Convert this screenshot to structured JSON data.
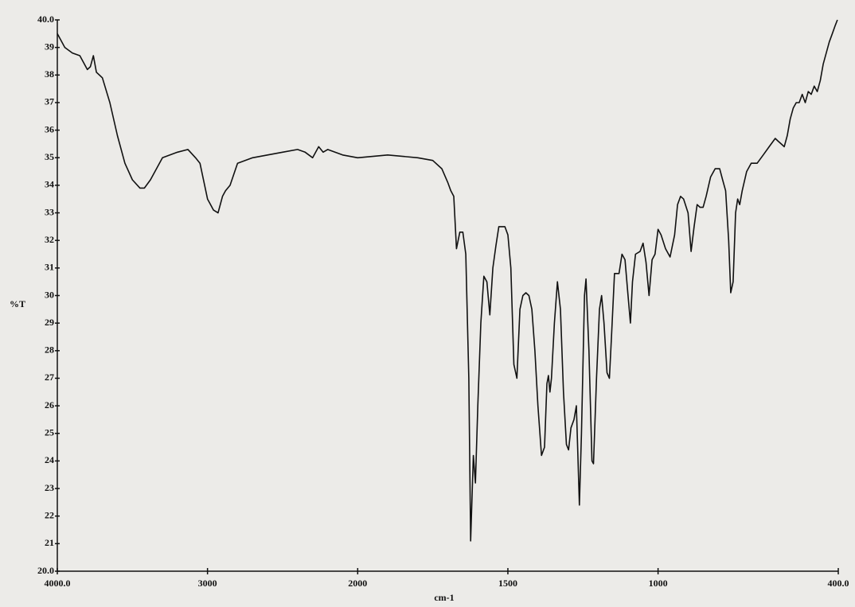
{
  "chart_data": {
    "type": "line",
    "x_label": "cm-1",
    "y_label": "%T",
    "color": "#111111",
    "xlim": [
      4000,
      400
    ],
    "ylim": [
      20,
      40
    ],
    "xticks": [
      {
        "value": 4000,
        "label": "4000.0"
      },
      3000,
      2000,
      1500,
      1000,
      {
        "value": 400,
        "label": "400.0"
      }
    ],
    "yticks": [
      {
        "value": 20,
        "label": "20.0"
      },
      21,
      22,
      23,
      24,
      25,
      26,
      27,
      28,
      29,
      30,
      31,
      32,
      33,
      34,
      35,
      36,
      37,
      38,
      39,
      {
        "value": 40,
        "label": "40.0"
      }
    ],
    "x": [
      4000,
      3950,
      3900,
      3850,
      3800,
      3780,
      3760,
      3740,
      3700,
      3650,
      3600,
      3550,
      3500,
      3450,
      3420,
      3380,
      3300,
      3200,
      3130,
      3080,
      3050,
      3000,
      2960,
      2930,
      2900,
      2880,
      2850,
      2800,
      2700,
      2600,
      2500,
      2400,
      2350,
      2300,
      2260,
      2230,
      2200,
      2100,
      2000,
      1900,
      1800,
      1750,
      1720,
      1700,
      1690,
      1680,
      1671,
      1660,
      1650,
      1640,
      1630,
      1624,
      1615,
      1608,
      1600,
      1590,
      1580,
      1570,
      1560,
      1550,
      1540,
      1530,
      1510,
      1500,
      1490,
      1480,
      1470,
      1460,
      1450,
      1440,
      1430,
      1420,
      1410,
      1400,
      1388,
      1378,
      1370,
      1365,
      1360,
      1355,
      1345,
      1335,
      1325,
      1315,
      1305,
      1298,
      1290,
      1280,
      1272,
      1262,
      1255,
      1245,
      1240,
      1230,
      1220,
      1215,
      1205,
      1195,
      1188,
      1180,
      1170,
      1162,
      1155,
      1145,
      1130,
      1120,
      1110,
      1100,
      1092,
      1085,
      1075,
      1060,
      1050,
      1040,
      1030,
      1020,
      1010,
      1000,
      990,
      975,
      960,
      945,
      935,
      925,
      915,
      900,
      890,
      880,
      870,
      860,
      850,
      840,
      825,
      810,
      795,
      785,
      775,
      765,
      758,
      750,
      742,
      735,
      728,
      720,
      705,
      690,
      670,
      650,
      630,
      610,
      600,
      590,
      580,
      570,
      560,
      550,
      540,
      530,
      520,
      510,
      500,
      490,
      480,
      470,
      460,
      450,
      440,
      430,
      420,
      410,
      403
    ],
    "values": [
      39.5,
      39.0,
      38.8,
      38.7,
      38.2,
      38.3,
      38.7,
      38.1,
      37.9,
      37.0,
      35.8,
      34.8,
      34.2,
      33.9,
      33.9,
      34.2,
      35.0,
      35.2,
      35.3,
      35.0,
      34.8,
      33.5,
      33.1,
      33.0,
      33.6,
      33.8,
      34.0,
      34.8,
      35.0,
      35.1,
      35.2,
      35.3,
      35.2,
      35.0,
      35.4,
      35.2,
      35.3,
      35.1,
      35.0,
      35.1,
      35.0,
      34.9,
      34.6,
      34.1,
      33.8,
      33.6,
      31.7,
      32.3,
      32.3,
      31.5,
      27.0,
      21.1,
      24.2,
      23.2,
      26.0,
      29.0,
      30.7,
      30.5,
      29.3,
      31.0,
      31.8,
      32.5,
      32.5,
      32.2,
      31.0,
      27.5,
      27.0,
      29.5,
      30.0,
      30.1,
      30.0,
      29.5,
      28.0,
      26.0,
      24.2,
      24.5,
      26.8,
      27.1,
      26.5,
      27.0,
      29.0,
      30.5,
      29.5,
      26.5,
      24.6,
      24.4,
      25.2,
      25.5,
      26.0,
      22.4,
      25.0,
      30.0,
      30.6,
      28.0,
      24.0,
      23.9,
      27.0,
      29.5,
      30.0,
      29.0,
      27.2,
      27.0,
      28.5,
      30.8,
      30.8,
      31.5,
      31.3,
      30.0,
      29.0,
      30.5,
      31.5,
      31.6,
      31.9,
      31.2,
      30.0,
      31.3,
      31.5,
      32.4,
      32.2,
      31.7,
      31.4,
      32.2,
      33.3,
      33.6,
      33.5,
      33.0,
      31.6,
      32.5,
      33.3,
      33.2,
      33.2,
      33.6,
      34.3,
      34.6,
      34.6,
      34.2,
      33.8,
      32.0,
      30.1,
      30.5,
      33.0,
      33.5,
      33.3,
      33.8,
      34.5,
      34.8,
      34.8,
      35.1,
      35.4,
      35.7,
      35.6,
      35.5,
      35.4,
      35.8,
      36.4,
      36.8,
      37.0,
      37.0,
      37.3,
      37.0,
      37.4,
      37.3,
      37.6,
      37.4,
      37.8,
      38.4,
      38.8,
      39.2,
      39.5,
      39.8,
      40.0
    ]
  }
}
